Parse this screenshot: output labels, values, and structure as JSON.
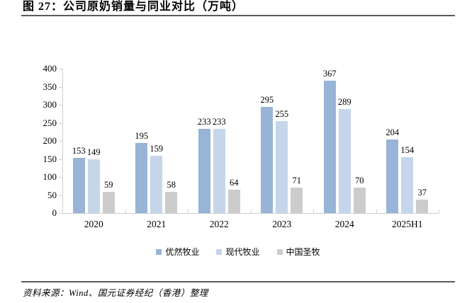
{
  "chart_data": {
    "type": "bar",
    "title": "图 27：公司原奶销量与同业对比（万吨）",
    "categories": [
      "2020",
      "2021",
      "2022",
      "2023",
      "2024",
      "2025H1"
    ],
    "series": [
      {
        "name": "优然牧业",
        "color": "#98B4D6",
        "values": [
          153,
          195,
          233,
          295,
          367,
          204
        ]
      },
      {
        "name": "现代牧业",
        "color": "#C6D6EA",
        "values": [
          149,
          159,
          233,
          255,
          289,
          154
        ]
      },
      {
        "name": "中国圣牧",
        "color": "#CCCCCC",
        "values": [
          59,
          58,
          64,
          71,
          70,
          37
        ]
      }
    ],
    "ylim": [
      0,
      400
    ],
    "ytick_step": 50,
    "grid": false,
    "legend_position": "bottom",
    "axis_color": "#CFCFCF",
    "rule_color": "#5B5B5B"
  },
  "footer": {
    "source": "资料来源：Wind、国元证券经纪（香港）整理"
  }
}
